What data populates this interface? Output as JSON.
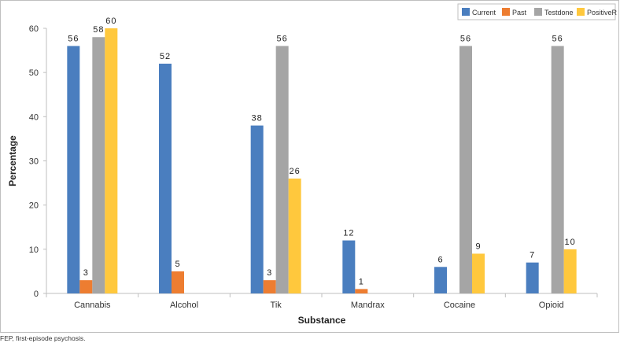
{
  "chart_data": {
    "type": "bar",
    "title": "",
    "xlabel": "Substance",
    "ylabel": "Percentage",
    "ylim": [
      0,
      60
    ],
    "yticks": [
      0,
      10,
      20,
      30,
      40,
      50,
      60
    ],
    "grid": false,
    "legend_position": "top-right",
    "categories": [
      "Cannabis",
      "Alcohol",
      "Tik",
      "Mandrax",
      "Cocaine",
      "Opioid"
    ],
    "series": [
      {
        "name": "Current",
        "color": "#4a7ebf",
        "values": [
          56,
          52,
          38,
          12,
          6,
          7
        ]
      },
      {
        "name": "Past",
        "color": "#ed7d31",
        "values": [
          3,
          5,
          3,
          1,
          null,
          null
        ]
      },
      {
        "name": "Testdone",
        "color": "#a5a5a5",
        "values": [
          58,
          null,
          56,
          null,
          56,
          56
        ]
      },
      {
        "name": "PositiveR",
        "color": "#ffc83d",
        "values": [
          60,
          null,
          26,
          null,
          9,
          10
        ]
      }
    ]
  },
  "footnote": "FEP, first-episode psychosis."
}
